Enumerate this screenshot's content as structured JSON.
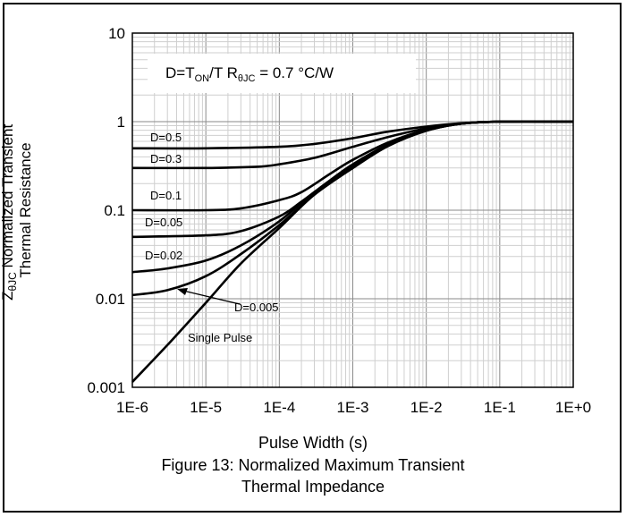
{
  "chart_data": {
    "type": "line",
    "xlabel": "Pulse Width (s)",
    "ylabel_line1": "Normalized Transient",
    "ylabel_line2": "Thermal Resistance",
    "ylabel_prefix": "Z",
    "ylabel_sub": "θJC",
    "x_scale": "log",
    "y_scale": "log",
    "xlim": [
      1e-06,
      1
    ],
    "ylim": [
      0.001,
      10
    ],
    "x_tick_labels": [
      "1E-6",
      "1E-5",
      "1E-4",
      "1E-3",
      "1E-2",
      "1E-1",
      "1E+0"
    ],
    "y_tick_labels": [
      "0.001",
      "0.01",
      "0.1",
      "1",
      "10"
    ],
    "grid": true,
    "annotation": {
      "d_text": "D=T",
      "on_sub": "ON",
      "t_text": "/T  R",
      "theta_sub": "θJC",
      "r_text": " = 0.7 °C/W"
    },
    "series": [
      {
        "name": "D=0.5",
        "label": "D=0.5",
        "x": [
          1e-06,
          1e-05,
          0.0001,
          0.0003,
          0.001,
          0.003,
          0.01,
          0.03,
          0.1,
          1
        ],
        "y": [
          0.5,
          0.5,
          0.52,
          0.56,
          0.65,
          0.77,
          0.88,
          0.96,
          1.0,
          1.0
        ]
      },
      {
        "name": "D=0.3",
        "label": "D=0.3",
        "x": [
          1e-06,
          1e-05,
          5e-05,
          0.0001,
          0.0003,
          0.001,
          0.003,
          0.01,
          0.03,
          0.1,
          1
        ],
        "y": [
          0.3,
          0.3,
          0.31,
          0.33,
          0.39,
          0.52,
          0.67,
          0.84,
          0.95,
          1.0,
          1.0
        ]
      },
      {
        "name": "D=0.1",
        "label": "D=0.1",
        "x": [
          1e-06,
          1e-05,
          3e-05,
          0.0001,
          0.0002,
          0.0005,
          0.001,
          0.003,
          0.01,
          0.03,
          0.1,
          1
        ],
        "y": [
          0.1,
          0.1,
          0.105,
          0.13,
          0.16,
          0.26,
          0.37,
          0.58,
          0.81,
          0.95,
          1.0,
          1.0
        ]
      },
      {
        "name": "D=0.05",
        "label": "D=0.05",
        "x": [
          1e-06,
          1e-05,
          3e-05,
          0.0001,
          0.0002,
          0.0005,
          0.001,
          0.003,
          0.01,
          0.03,
          0.1,
          1
        ],
        "y": [
          0.05,
          0.052,
          0.058,
          0.085,
          0.125,
          0.22,
          0.33,
          0.55,
          0.8,
          0.95,
          1.0,
          1.0
        ]
      },
      {
        "name": "D=0.02",
        "label": "D=0.02",
        "x": [
          1e-06,
          3e-06,
          1e-05,
          3e-05,
          0.0001,
          0.0003,
          0.001,
          0.003,
          0.01,
          0.03,
          0.1,
          1
        ],
        "y": [
          0.02,
          0.022,
          0.027,
          0.04,
          0.075,
          0.16,
          0.31,
          0.54,
          0.8,
          0.95,
          1.0,
          1.0
        ]
      },
      {
        "name": "D=0.005",
        "label": "D=0.005",
        "x": [
          1e-06,
          3e-06,
          1e-05,
          3e-05,
          0.0001,
          0.0003,
          0.001,
          0.003,
          0.01,
          0.03,
          0.1,
          1
        ],
        "y": [
          0.011,
          0.0125,
          0.018,
          0.032,
          0.068,
          0.15,
          0.3,
          0.53,
          0.79,
          0.95,
          1.0,
          1.0
        ]
      },
      {
        "name": "Single Pulse",
        "label": "Single Pulse",
        "x": [
          1e-06,
          3e-06,
          1e-05,
          3e-05,
          0.0001,
          0.0003,
          0.001,
          0.003,
          0.01,
          0.03,
          0.1,
          1
        ],
        "y": [
          0.00115,
          0.003,
          0.009,
          0.025,
          0.063,
          0.15,
          0.3,
          0.53,
          0.79,
          0.95,
          1.0,
          1.0
        ]
      }
    ]
  },
  "caption": {
    "line1": "Figure 13: Normalized Maximum Transient",
    "line2": "Thermal Impedance"
  }
}
